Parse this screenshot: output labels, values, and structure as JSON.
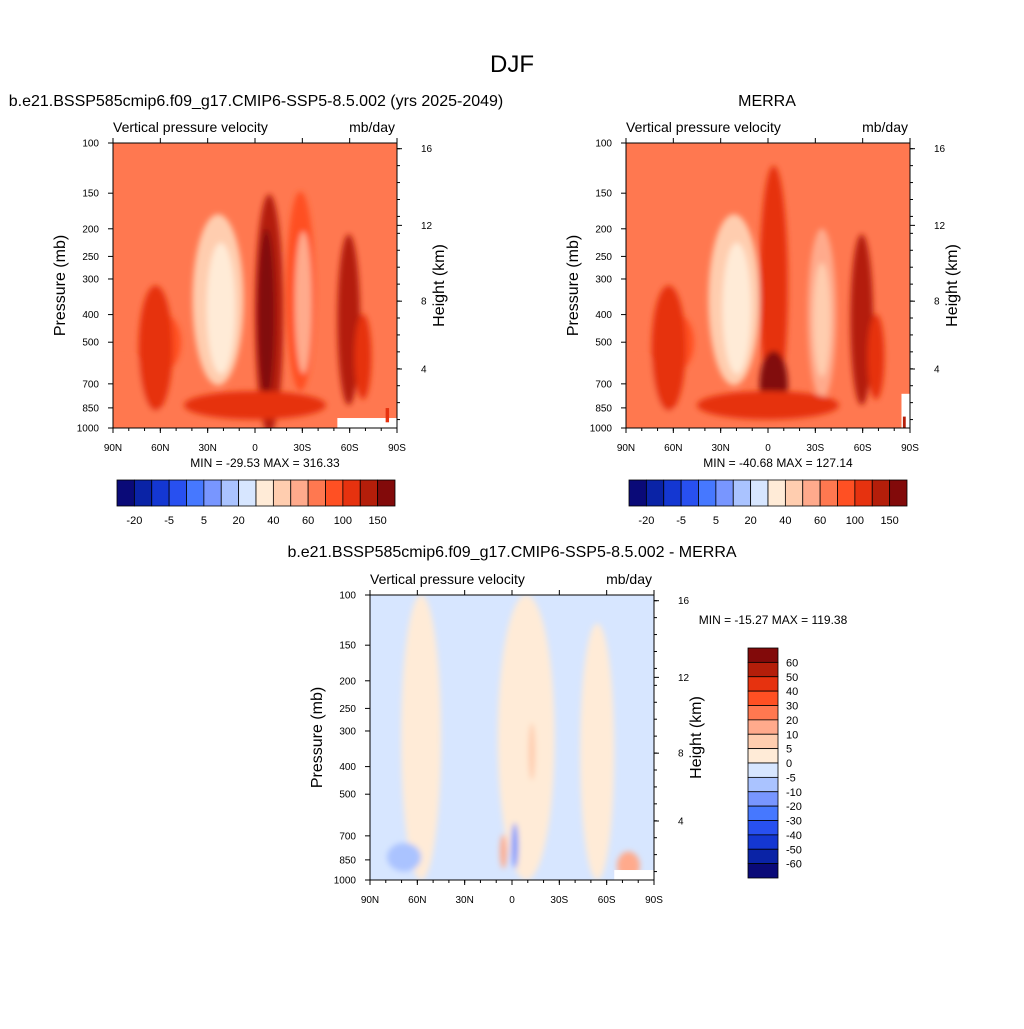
{
  "figure": {
    "title": "DJF"
  },
  "chart_data": [
    {
      "type": "heatmap",
      "id": "model",
      "title": "b.e21.BSSP585cmip6.f09_g17.CMIP6-SSP5-8.5.002 (yrs 2025-2049)",
      "left_subtitle": "Vertical pressure velocity",
      "right_subtitle": "mb/day",
      "ylabel": "Pressure (mb)",
      "ylabel_right": "Height (km)",
      "x_tick_labels": [
        "90N",
        "60N",
        "30N",
        "0",
        "30S",
        "60S",
        "90S"
      ],
      "y_tick_labels": [
        "100",
        "150",
        "200",
        "250",
        "300",
        "400",
        "500",
        "700",
        "850",
        "1000"
      ],
      "height_tick_labels": [
        "16",
        "12",
        "8",
        "4"
      ],
      "y_scale": "log",
      "stats_text": "MIN = -29.53  MAX = 316.33",
      "colorbar": {
        "orientation": "horizontal",
        "tick_labels": [
          "-20",
          "-5",
          "5",
          "20",
          "40",
          "60",
          "100",
          "150"
        ],
        "colors": [
          "#0a0a78",
          "#0a23a6",
          "#1437d2",
          "#2850f0",
          "#4678ff",
          "#7896ff",
          "#aac3ff",
          "#d7e6ff",
          "#ffebd7",
          "#ffcdaf",
          "#ffaa8c",
          "#ff7850",
          "#ff5023",
          "#e6320f",
          "#b41e0a",
          "#820a0a"
        ]
      }
    },
    {
      "type": "heatmap",
      "id": "obs",
      "title": "MERRA",
      "left_subtitle": "Vertical pressure velocity",
      "right_subtitle": "mb/day",
      "ylabel": "Pressure (mb)",
      "ylabel_right": "Height (km)",
      "x_tick_labels": [
        "90N",
        "60N",
        "30N",
        "0",
        "30S",
        "60S",
        "90S"
      ],
      "y_tick_labels": [
        "100",
        "150",
        "200",
        "250",
        "300",
        "400",
        "500",
        "700",
        "850",
        "1000"
      ],
      "height_tick_labels": [
        "16",
        "12",
        "8",
        "4"
      ],
      "y_scale": "log",
      "stats_text": "MIN = -40.68  MAX = 127.14",
      "colorbar": {
        "orientation": "horizontal",
        "tick_labels": [
          "-20",
          "-5",
          "5",
          "20",
          "40",
          "60",
          "100",
          "150"
        ],
        "colors": [
          "#0a0a78",
          "#0a23a6",
          "#1437d2",
          "#2850f0",
          "#4678ff",
          "#7896ff",
          "#aac3ff",
          "#d7e6ff",
          "#ffebd7",
          "#ffcdaf",
          "#ffaa8c",
          "#ff7850",
          "#ff5023",
          "#e6320f",
          "#b41e0a",
          "#820a0a"
        ]
      }
    },
    {
      "type": "heatmap",
      "id": "diff",
      "title": "b.e21.BSSP585cmip6.f09_g17.CMIP6-SSP5-8.5.002 - MERRA",
      "left_subtitle": "Vertical pressure velocity",
      "right_subtitle": "mb/day",
      "ylabel": "Pressure (mb)",
      "ylabel_right": "Height (km)",
      "x_tick_labels": [
        "90N",
        "60N",
        "30N",
        "0",
        "30S",
        "60S",
        "90S"
      ],
      "y_tick_labels": [
        "100",
        "150",
        "200",
        "250",
        "300",
        "400",
        "500",
        "700",
        "850",
        "1000"
      ],
      "height_tick_labels": [
        "16",
        "12",
        "8",
        "4"
      ],
      "y_scale": "log",
      "stats_text": "MIN = -15.27  MAX = 119.38",
      "colorbar": {
        "orientation": "vertical",
        "tick_labels": [
          "60",
          "50",
          "40",
          "30",
          "20",
          "10",
          "5",
          "0",
          "-5",
          "-10",
          "-20",
          "-30",
          "-40",
          "-50",
          "-60"
        ],
        "colors": [
          "#820a0a",
          "#b41e0a",
          "#e6320f",
          "#ff5023",
          "#ff7850",
          "#ffaa8c",
          "#ffcdaf",
          "#ffebd7",
          "#d7e6ff",
          "#aac3ff",
          "#7896ff",
          "#4678ff",
          "#2850f0",
          "#1437d2",
          "#0a23a6",
          "#0a0a78"
        ]
      }
    }
  ]
}
